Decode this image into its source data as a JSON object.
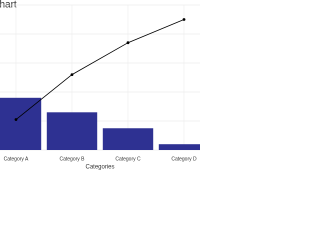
{
  "chart_data": {
    "type": "pareto",
    "title": "Pareto Chart",
    "x_label": "Categories",
    "categories": [
      "Category A",
      "Category B",
      "Category C",
      "Category D"
    ],
    "series": [
      {
        "color": "#2e3192",
        "values": [
          36,
          26,
          15,
          4
        ]
      },
      {
        "color": "#000000",
        "values": [
          21,
          52,
          74,
          90
        ],
        "axis": "y2"
      }
    ],
    "ylim": [
      0,
      100
    ],
    "yticks": [
      0,
      20,
      40,
      60,
      80,
      100
    ],
    "y2lim": [
      0,
      100
    ],
    "grid": true
  }
}
